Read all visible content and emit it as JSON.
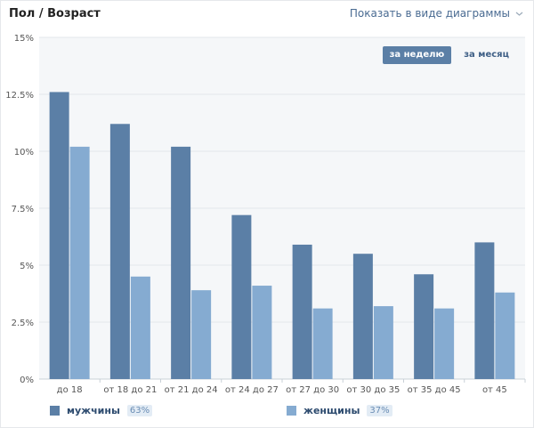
{
  "header": {
    "title": "Пол / Возраст",
    "view_toggle_label": "Показать в виде диаграммы"
  },
  "period": {
    "week_label": "за неделю",
    "month_label": "за месяц",
    "active": "week"
  },
  "legend": {
    "men_label": "мужчины",
    "men_pct": "63%",
    "women_label": "женщины",
    "women_pct": "37%"
  },
  "colors": {
    "men": "#5b7fa6",
    "women": "#85abd1",
    "plot_bg": "#f5f7f9",
    "grid": "#e3e7eb"
  },
  "chart_data": {
    "type": "bar",
    "categories": [
      "до 18",
      "от 18 до 21",
      "от 21 до 24",
      "от 24 до 27",
      "от 27 до 30",
      "от 30 до 35",
      "от 35 до 45",
      "от 45"
    ],
    "series": [
      {
        "name": "мужчины",
        "values": [
          12.6,
          11.2,
          10.2,
          7.2,
          5.9,
          5.5,
          4.6,
          6.0
        ]
      },
      {
        "name": "женщины",
        "values": [
          10.2,
          4.5,
          3.9,
          4.1,
          3.1,
          3.2,
          3.1,
          3.8
        ]
      }
    ],
    "yticks": [
      "0%",
      "2.5%",
      "5%",
      "7.5%",
      "10%",
      "12.5%",
      "15%"
    ],
    "ylim": [
      0,
      15
    ],
    "grid": true,
    "legend_position": "bottom"
  }
}
